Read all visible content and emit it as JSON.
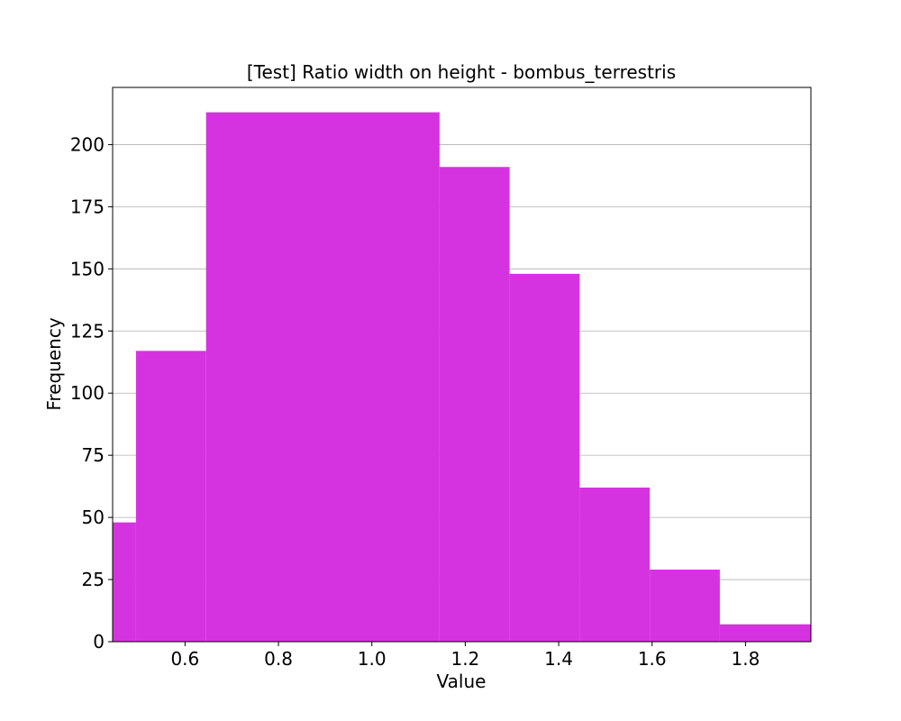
{
  "chart_data": {
    "type": "bar",
    "title": "[Test] Ratio width on height - bombus_terrestris",
    "xlabel": "Value",
    "ylabel": "Frequency",
    "xlim": [
      0.445,
      1.94
    ],
    "ylim": [
      0,
      223
    ],
    "grid": "y-only",
    "bar_color": "#d633e0",
    "bin_edges": [
      0.445,
      0.495,
      0.645,
      1.145,
      1.295,
      1.445,
      1.595,
      1.745,
      1.94
    ],
    "values": [
      48,
      117,
      213,
      191,
      148,
      62,
      29,
      7
    ],
    "xticks": [
      0.6,
      0.8,
      1.0,
      1.2,
      1.4,
      1.6,
      1.8
    ],
    "xtick_labels": [
      "0.6",
      "0.8",
      "1.0",
      "1.2",
      "1.4",
      "1.6",
      "1.8"
    ],
    "yticks": [
      0,
      25,
      50,
      75,
      100,
      125,
      150,
      175,
      200
    ],
    "ytick_labels": [
      "0",
      "25",
      "50",
      "75",
      "100",
      "125",
      "150",
      "175",
      "200"
    ]
  }
}
